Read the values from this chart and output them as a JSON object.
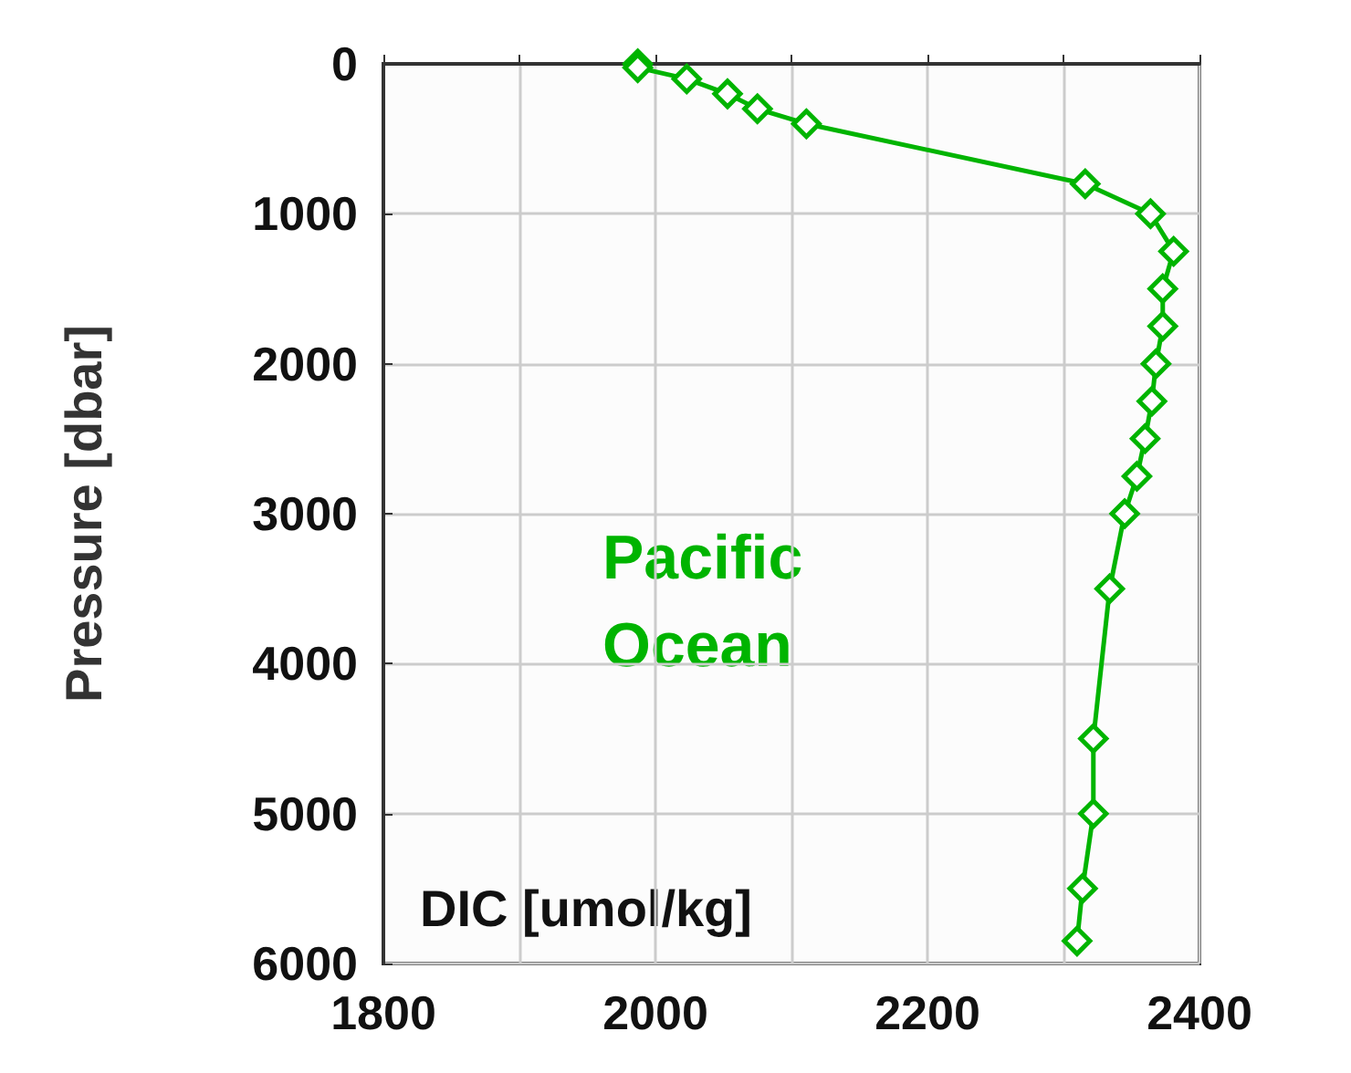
{
  "chart_data": {
    "type": "line",
    "xlabel": "DIC [umol/kg]",
    "ylabel": "Pressure [dbar]",
    "annotations": [
      "Pacific Ocean"
    ],
    "series": [
      {
        "color": "#00b400",
        "x": [
          1987,
          1987,
          2023,
          2053,
          2075,
          2111,
          2316,
          2364,
          2381,
          2373,
          2373,
          2368,
          2365,
          2360,
          2354,
          2345,
          2334,
          2322,
          2322,
          2314,
          2310
        ],
        "values": [
          0,
          25,
          100,
          200,
          300,
          400,
          800,
          1000,
          1250,
          1500,
          1750,
          2000,
          2250,
          2500,
          2750,
          3000,
          3500,
          4500,
          5000,
          5500,
          5850
        ]
      }
    ],
    "xlim": [
      1800,
      2400
    ],
    "xticks": [
      1800,
      {
        "value": 1900,
        "label": null
      },
      2000,
      {
        "value": 2100,
        "label": null
      },
      2200,
      {
        "value": 2300,
        "label": null
      },
      2400
    ],
    "ylim": [
      6000,
      0
    ],
    "yticks": [
      0,
      1000,
      2000,
      3000,
      4000,
      5000,
      6000
    ],
    "grid": true,
    "marker": "diamond",
    "line_style": "solid"
  }
}
